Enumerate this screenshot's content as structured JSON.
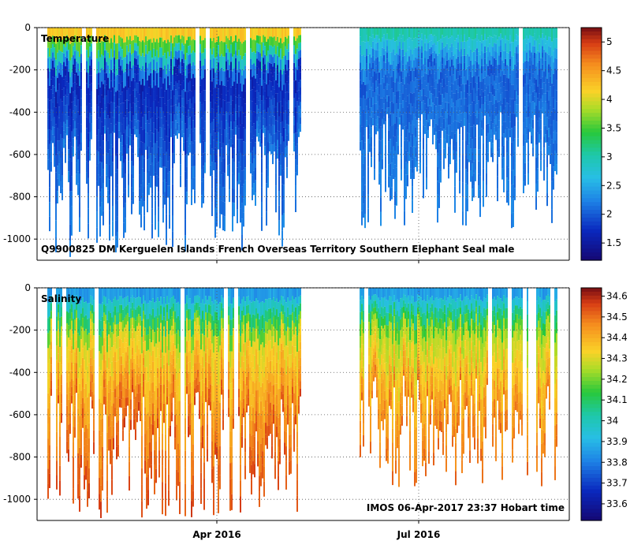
{
  "chart_data": [
    {
      "type": "heatmap",
      "title": "Temperature",
      "ylim": [
        -1100,
        0
      ],
      "yticks": [
        0,
        -200,
        -400,
        -600,
        -800,
        -1000
      ],
      "xticks": [
        "Apr 2016",
        "Jul 2016"
      ],
      "colorbar": {
        "range": [
          1.2,
          5.25
        ],
        "ticks": [
          "5",
          "4.5",
          "4",
          "3.5",
          "3",
          "2.5",
          "2",
          "1.5"
        ],
        "tick_values": [
          5,
          4.5,
          4,
          3.5,
          3,
          2.5,
          2,
          1.5
        ]
      },
      "profile_groups": [
        {
          "period": "early 2016 to early May 2016",
          "depth_range_m": [
            -1090,
            0
          ],
          "surface_value": 4.2,
          "mid_depth_value": 1.6,
          "deep_value": 2.2
        },
        {
          "period": "mid June 2016 to late August 2016",
          "depth_range_m": [
            -1000,
            0
          ],
          "surface_value": 3.0,
          "mid_depth_value": 2.0,
          "deep_value": 2.2
        }
      ],
      "annotation": "Q9900825 DM Kerguelen Islands French Overseas Territory Southern Elephant Seal  male"
    },
    {
      "type": "heatmap",
      "title": "Salinity",
      "ylim": [
        -1100,
        0
      ],
      "yticks": [
        0,
        -200,
        -400,
        -600,
        -800,
        -1000
      ],
      "xticks": [
        "Apr 2016",
        "Jul 2016"
      ],
      "colorbar": {
        "range": [
          33.52,
          34.64
        ],
        "ticks": [
          "34.6",
          "34.5",
          "34.4",
          "34.3",
          "34.2",
          "34.1",
          "34",
          "33.9",
          "33.8",
          "33.7",
          "33.6"
        ],
        "tick_values": [
          34.6,
          34.5,
          34.4,
          34.3,
          34.2,
          34.1,
          34.0,
          33.9,
          33.8,
          33.7,
          33.6
        ]
      },
      "profile_groups": [
        {
          "period": "early 2016 to early May 2016",
          "depth_range_m": [
            -1090,
            0
          ],
          "surface_value": 33.85,
          "mid_depth_value": 34.3,
          "deep_value": 34.55
        },
        {
          "period": "mid June 2016 to late August 2016",
          "depth_range_m": [
            -1000,
            0
          ],
          "surface_value": 33.85,
          "mid_depth_value": 34.25,
          "deep_value": 34.5
        }
      ],
      "annotation": "IMOS 06-Apr-2017 23:37 Hobart time"
    }
  ],
  "colors": {
    "background": "#ffffff",
    "axis": "#000000"
  }
}
